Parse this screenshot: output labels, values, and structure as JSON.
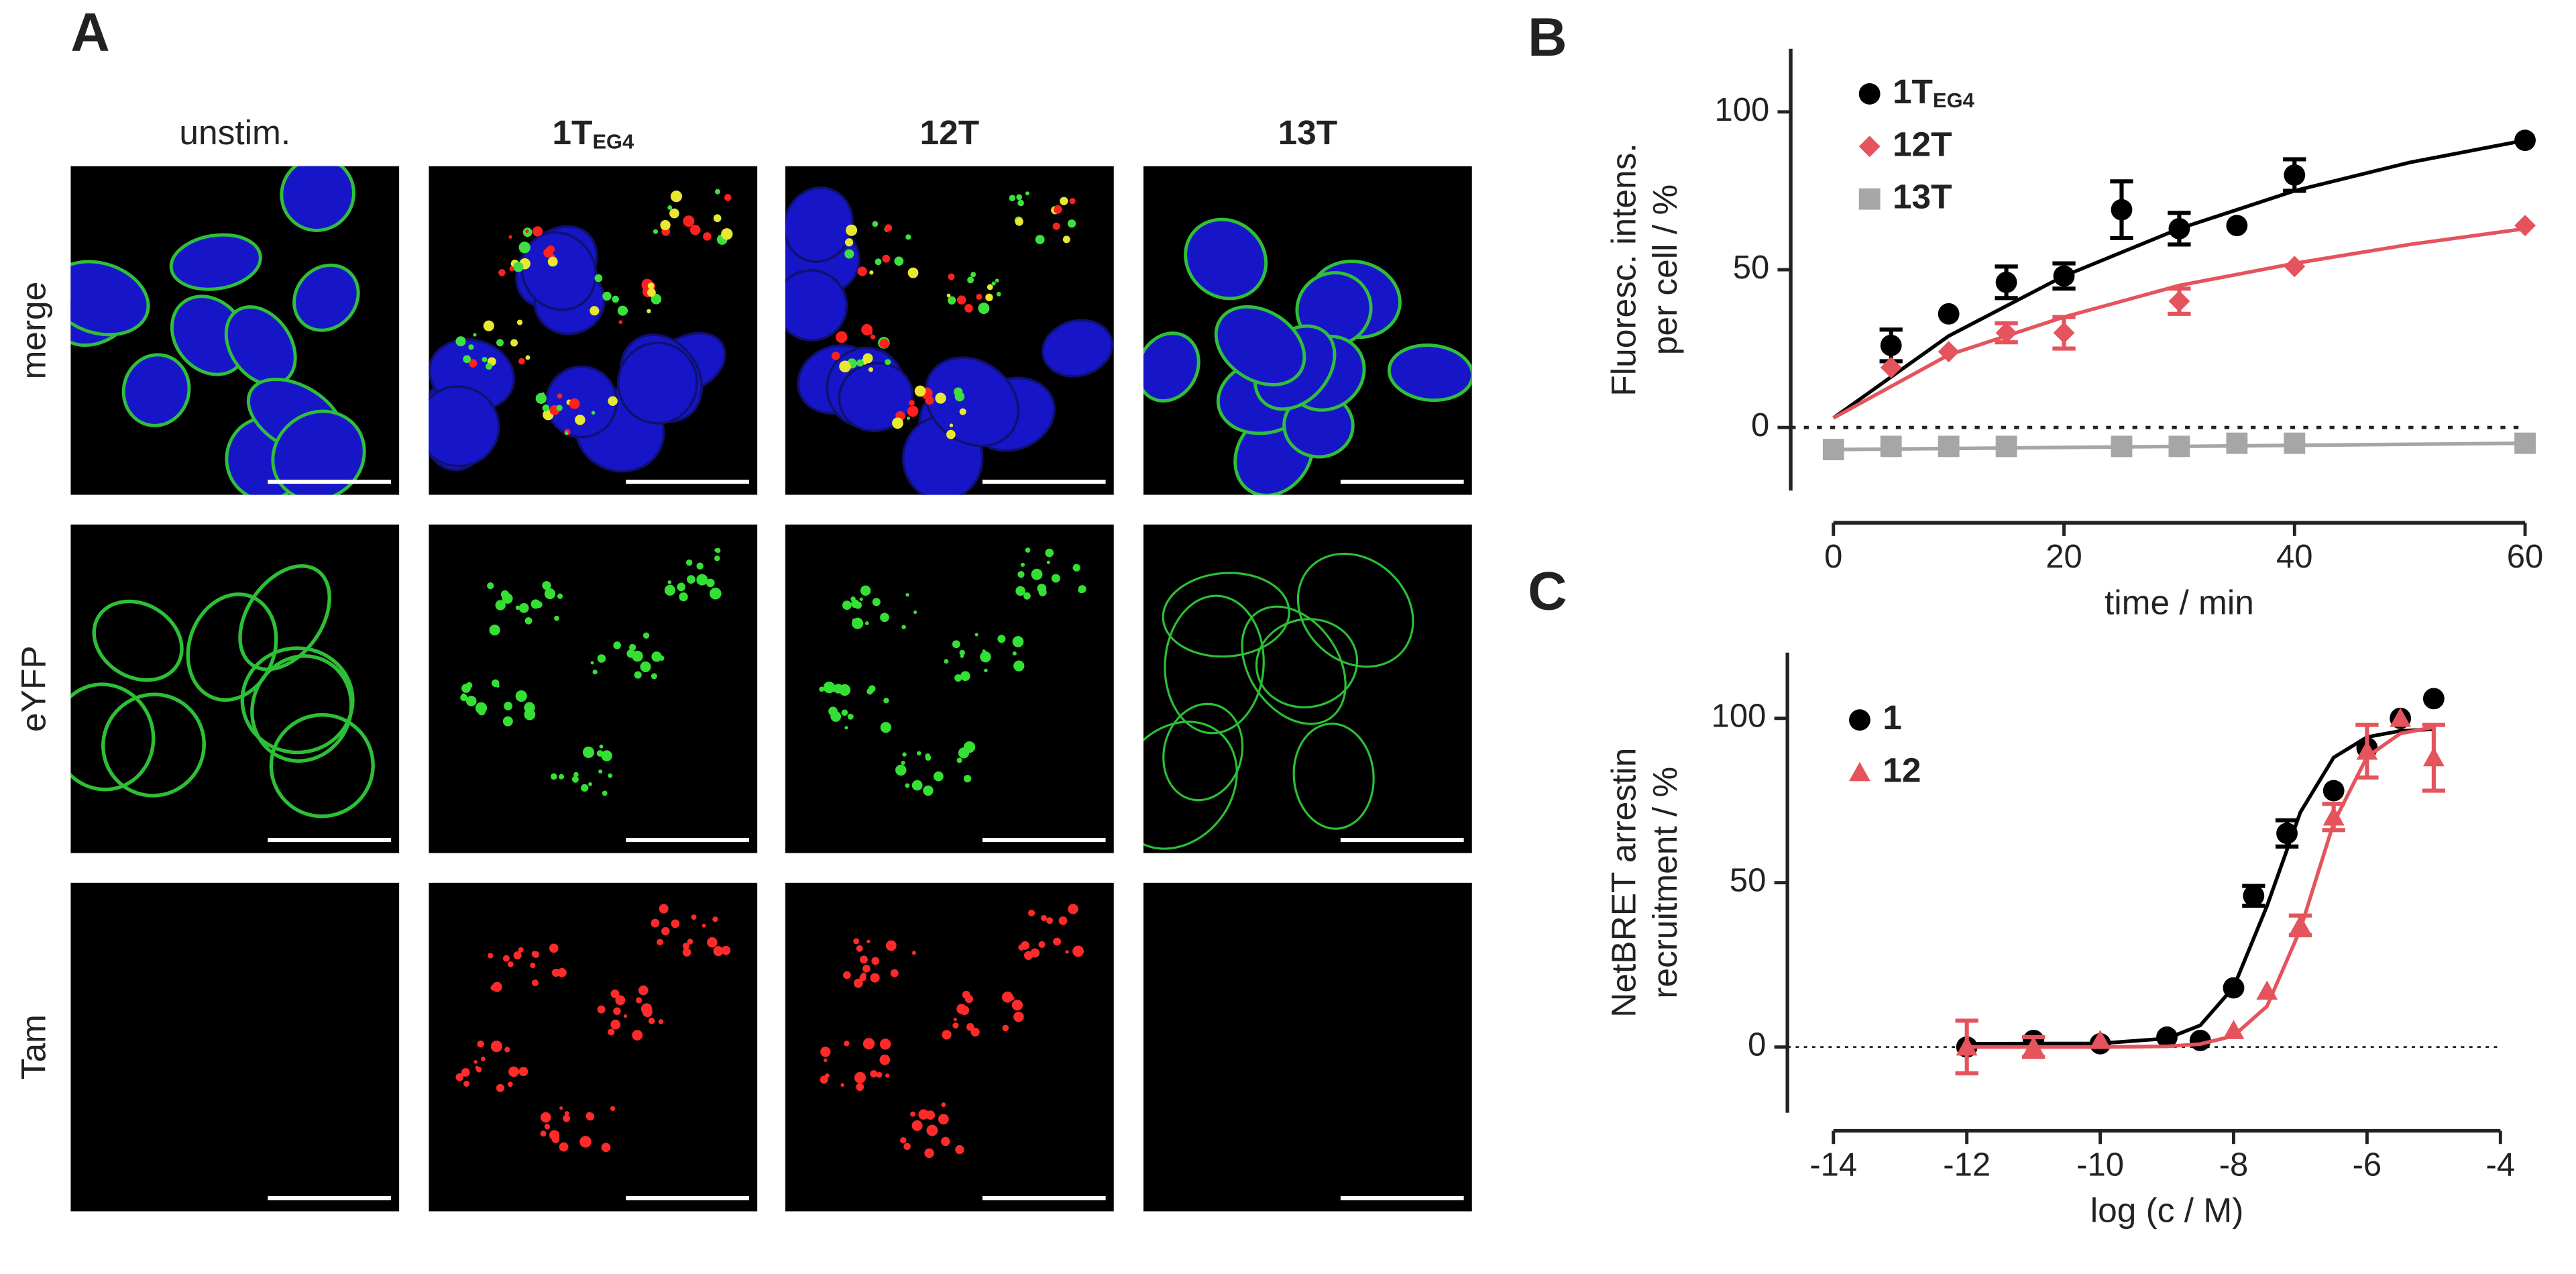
{
  "panel_labels": [
    "A",
    "B",
    "C"
  ],
  "panel_a": {
    "columns": [
      {
        "label": "unstim."
      },
      {
        "label": "1T",
        "subscript": "EG4"
      },
      {
        "label": "12T"
      },
      {
        "label": "13T"
      }
    ],
    "rows": [
      "merge",
      "eYFP",
      "Tam"
    ]
  },
  "chart_data": [
    {
      "type": "scatter",
      "x_label": "time / min",
      "y_label": [
        "Fluoresc. intens.",
        "per cell / %"
      ],
      "xlim": [
        0,
        60
      ],
      "xticks": [
        0,
        20,
        40,
        60
      ],
      "ylim": [
        -20,
        120
      ],
      "yticks": [
        0,
        50,
        100
      ],
      "zero_line": true,
      "legend": "upper left",
      "series": [
        {
          "name": "1T",
          "name_subscript": "EG4",
          "color": "#000000",
          "marker": "circle",
          "x": [
            5,
            10,
            15,
            20,
            25,
            30,
            35,
            40,
            60
          ],
          "values": [
            26,
            36,
            46,
            48,
            69,
            63,
            64,
            80,
            91
          ],
          "errors": [
            5,
            null,
            5,
            4,
            9,
            5,
            null,
            5,
            null
          ],
          "fit": {
            "x": [
              0,
              10,
              20,
              30,
              40,
              50,
              60
            ],
            "values": [
              3,
              29,
              48,
              63,
              75,
              84,
              91
            ]
          }
        },
        {
          "name": "12T",
          "color": "#e5535d",
          "marker": "diamond",
          "x": [
            5,
            10,
            15,
            20,
            30,
            40,
            60
          ],
          "values": [
            19,
            24,
            30,
            30,
            40,
            51,
            64
          ],
          "errors": [
            null,
            null,
            3,
            5,
            4,
            null,
            null
          ],
          "fit": {
            "x": [
              0,
              10,
              20,
              30,
              40,
              50,
              60
            ],
            "values": [
              3,
              23,
              35,
              45,
              52,
              58,
              63
            ]
          }
        },
        {
          "name": "13T",
          "color": "#a6a6a6",
          "marker": "square",
          "x": [
            0,
            5,
            10,
            15,
            25,
            30,
            35,
            40,
            60
          ],
          "values": [
            -7,
            -6,
            -6,
            -6,
            -6,
            -6,
            -5,
            -5,
            -5
          ],
          "errors": [
            null,
            null,
            null,
            null,
            null,
            null,
            null,
            null,
            null
          ],
          "fit": {
            "x": [
              0,
              60
            ],
            "values": [
              -7,
              -5
            ]
          }
        }
      ]
    },
    {
      "type": "scatter",
      "x_label": "log  (c / M)",
      "y_label": [
        "NetBRET arrestin",
        "recruitment / %"
      ],
      "xlim": [
        -14,
        -4
      ],
      "xticks": [
        -14,
        -12,
        -10,
        -8,
        -6,
        -4
      ],
      "ylim": [
        -20,
        120
      ],
      "yticks": [
        0,
        50,
        100
      ],
      "zero_line": true,
      "legend": "upper left",
      "series": [
        {
          "name": "1",
          "color": "#000000",
          "marker": "circle",
          "x": [
            -12,
            -11,
            -10,
            -9,
            -8.5,
            -8,
            -7.7,
            -7.2,
            -6.5,
            -6,
            -5.5,
            -5
          ],
          "values": [
            0,
            2,
            1,
            3,
            2,
            18,
            46,
            65,
            78,
            91,
            100,
            106
          ],
          "errors": [
            null,
            null,
            null,
            null,
            null,
            null,
            3,
            4,
            null,
            null,
            null,
            null
          ],
          "fit": {
            "x": [
              -12,
              -10,
              -9,
              -8.5,
              -8,
              -7.5,
              -7,
              -6.5,
              -6,
              -5.5,
              -5
            ],
            "values": [
              1,
              1.1,
              2.6,
              6.6,
              18.2,
              42.9,
              71.4,
              88.1,
              94.3,
              96.2,
              96.7
            ]
          }
        },
        {
          "name": "12",
          "color": "#e5535d",
          "marker": "triangle",
          "x": [
            -12,
            -11,
            -10,
            -8,
            -7.5,
            -7,
            -6.5,
            -6,
            -5.5,
            -5
          ],
          "values": [
            0,
            0,
            2,
            5,
            17,
            37,
            70,
            90,
            100,
            88
          ],
          "errors": [
            8,
            3,
            null,
            null,
            null,
            3,
            4,
            8,
            null,
            10
          ],
          "fit": {
            "x": [
              -12,
              -10,
              -9,
              -8.5,
              -8,
              -7.5,
              -7,
              -6.5,
              -6,
              -5.5,
              -5
            ],
            "values": [
              0,
              0,
              0.2,
              0.9,
              3.4,
              12.4,
              35.8,
              68.2,
              88.3,
              95.4,
              97.3
            ]
          }
        }
      ]
    }
  ]
}
